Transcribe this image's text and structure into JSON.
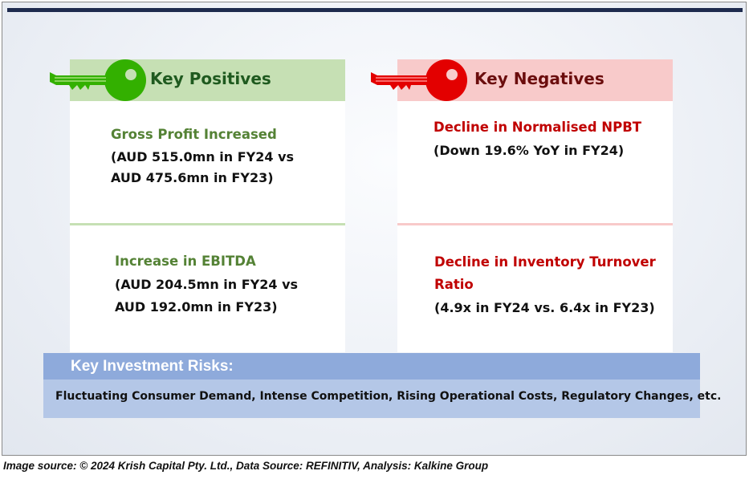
{
  "positives": {
    "heading": "Key Positives",
    "items": [
      {
        "title": "Gross Profit Increased",
        "lines": [
          "(AUD 515.0mn in FY24 vs",
          "AUD 475.6mn in FY23)"
        ]
      },
      {
        "title": "Increase in EBITDA",
        "lines": [
          "(AUD 204.5mn in FY24 vs",
          "AUD 192.0mn in FY23)"
        ]
      }
    ]
  },
  "negatives": {
    "heading": "Key Negatives",
    "items": [
      {
        "title": "Decline in Normalised NPBT",
        "lines": [
          "(Down 19.6% YoY in FY24)"
        ]
      },
      {
        "title_lines": [
          "Decline in Inventory Turnover",
          "Ratio"
        ],
        "lines": [
          "(4.9x in FY24 vs. 6.4x in FY23)"
        ]
      }
    ]
  },
  "risks": {
    "heading": "Key Investment Risks:",
    "text": "Fluctuating Consumer Demand, Intense Competition, Rising Operational Costs, Regulatory Changes, etc."
  },
  "footer": {
    "source": "Image source: © 2024 Krish Capital Pty. Ltd., Data Source: REFINITIV, Analysis: Kalkine Group"
  },
  "colors": {
    "positive_key": "#33b000",
    "negative_key": "#e30000",
    "positive_text": "#548235",
    "negative_text": "#c00000"
  },
  "icons": {
    "positive": "key-icon",
    "negative": "key-icon"
  }
}
